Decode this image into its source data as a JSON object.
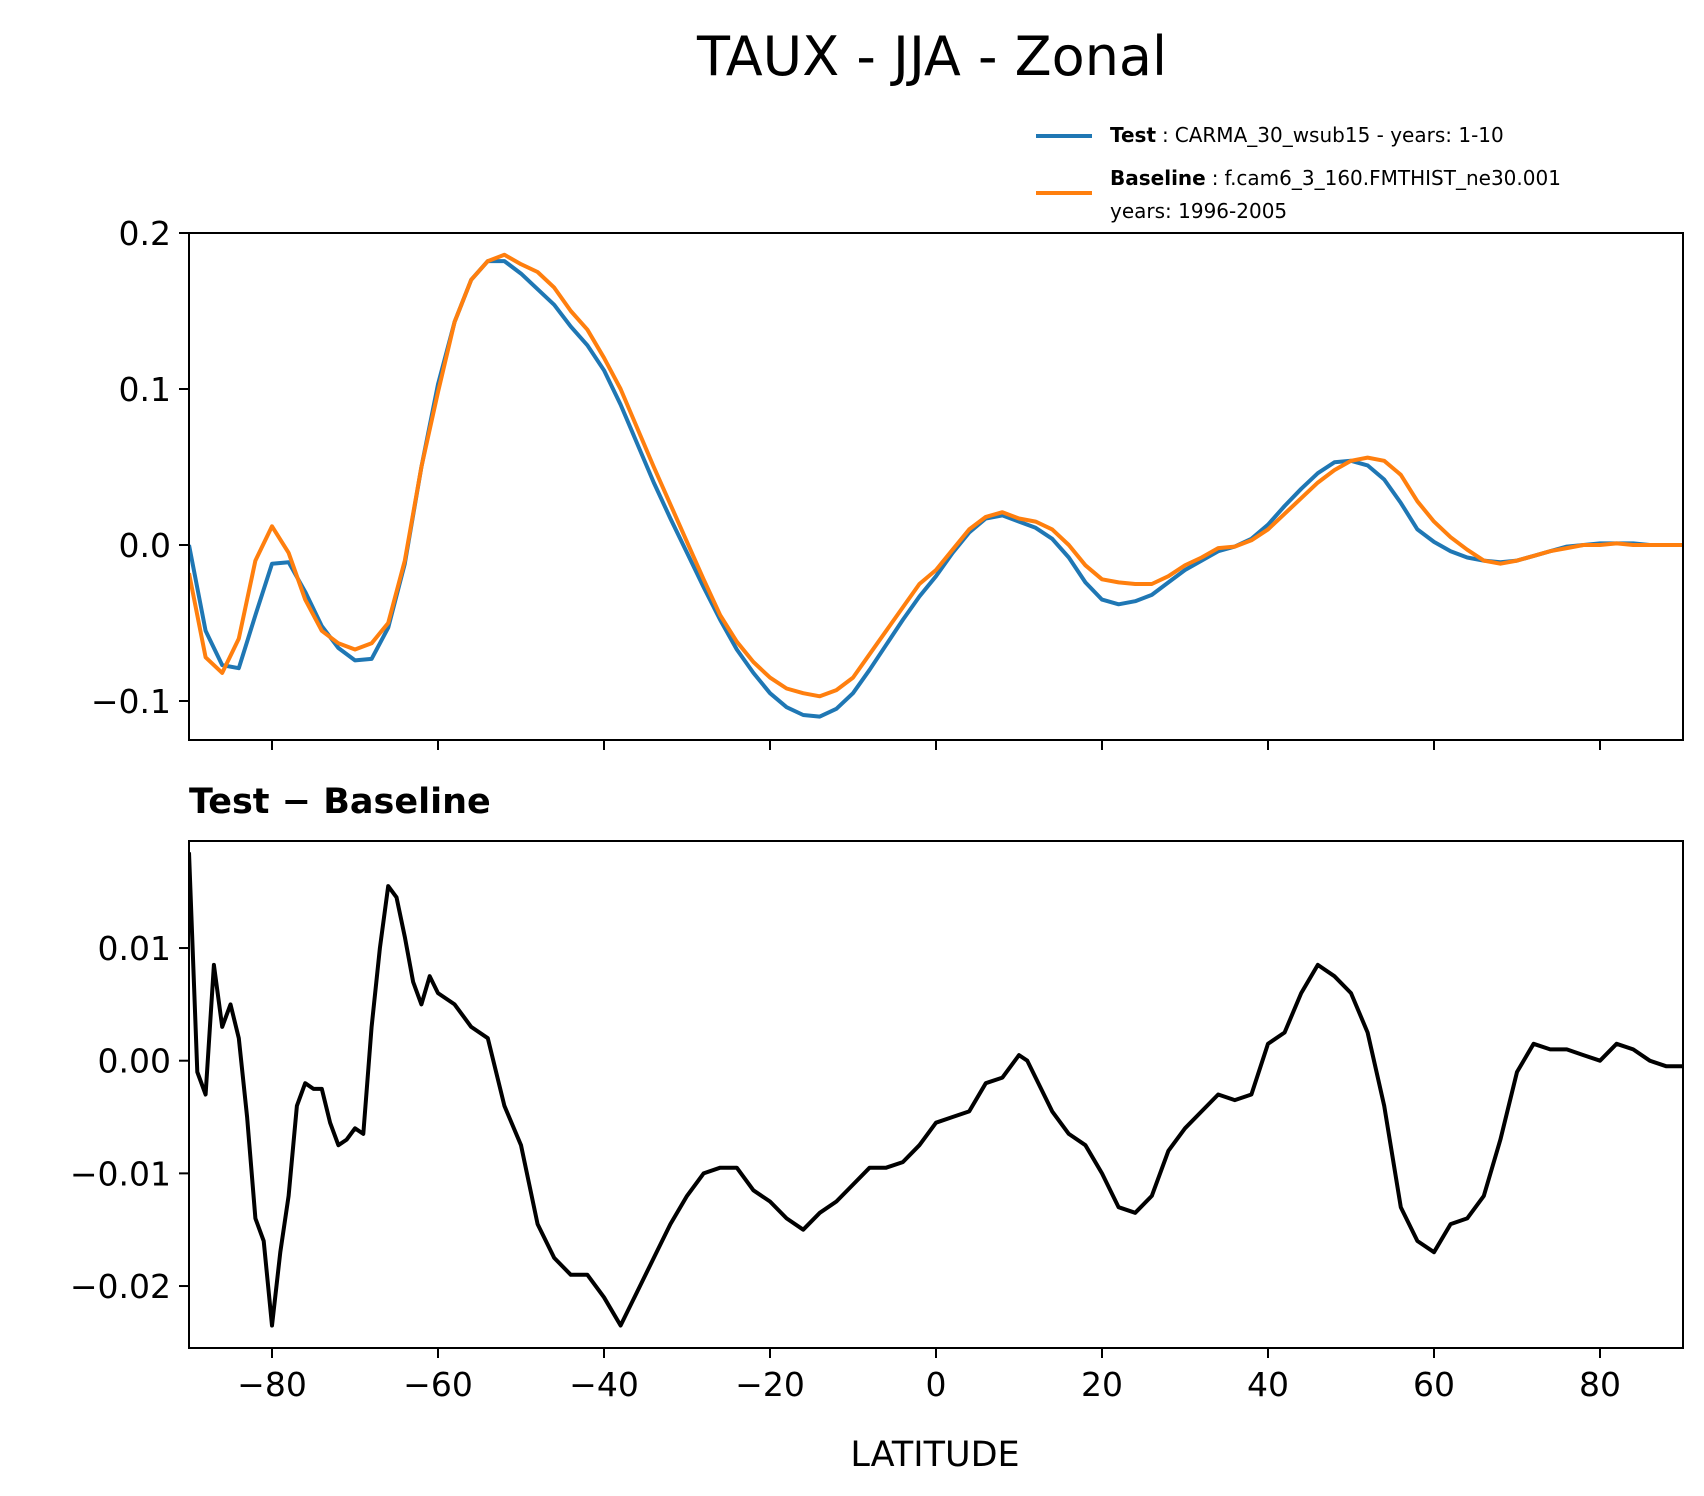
{
  "figure": {
    "title": "TAUX - JJA - Zonal"
  },
  "legend": {
    "placement": "top-right",
    "entries": [
      {
        "bold": "Test",
        "sep": ":",
        "text": "CARMA_30_wsub15 - years: 1-10",
        "text2": "",
        "color": "#1f77b4"
      },
      {
        "bold": "Baseline",
        "sep": ":",
        "text": "f.cam6_3_160.FMTHIST_ne30.001",
        "text2": "years: 1996-2005",
        "color": "#ff7f0e"
      }
    ]
  },
  "chart_data": [
    {
      "type": "line",
      "title": "",
      "xlabel": "",
      "ylabel": "",
      "xlim": [
        -90,
        90
      ],
      "ylim": [
        -0.125,
        0.2
      ],
      "yticks": [
        -0.1,
        0.0,
        0.1,
        0.2
      ],
      "ytick_labels": [
        "−0.1",
        "0.0",
        "0.1",
        "0.2"
      ],
      "xticks": [
        -80,
        -60,
        -40,
        -20,
        0,
        20,
        40,
        60,
        80
      ],
      "grid": false,
      "series": [
        {
          "name": "Test",
          "color": "#1f77b4",
          "x": [
            -90,
            -88,
            -86,
            -84,
            -82,
            -80,
            -78,
            -76,
            -74,
            -72,
            -70,
            -68,
            -66,
            -64,
            -62,
            -60,
            -58,
            -56,
            -54,
            -52,
            -50,
            -48,
            -46,
            -44,
            -42,
            -40,
            -38,
            -36,
            -34,
            -32,
            -30,
            -28,
            -26,
            -24,
            -22,
            -20,
            -18,
            -16,
            -14,
            -12,
            -10,
            -8,
            -6,
            -4,
            -2,
            0,
            2,
            4,
            6,
            8,
            10,
            12,
            14,
            16,
            18,
            20,
            22,
            24,
            26,
            28,
            30,
            32,
            34,
            36,
            38,
            40,
            42,
            44,
            46,
            48,
            50,
            52,
            54,
            56,
            58,
            60,
            62,
            64,
            66,
            68,
            70,
            72,
            74,
            76,
            78,
            80,
            82,
            84,
            86,
            88,
            90
          ],
          "y": [
            0.0,
            -0.055,
            -0.077,
            -0.079,
            -0.045,
            -0.012,
            -0.011,
            -0.03,
            -0.052,
            -0.066,
            -0.074,
            -0.073,
            -0.053,
            -0.012,
            0.05,
            0.103,
            0.143,
            0.17,
            0.182,
            0.182,
            0.174,
            0.164,
            0.154,
            0.14,
            0.128,
            0.112,
            0.09,
            0.065,
            0.04,
            0.017,
            -0.005,
            -0.027,
            -0.048,
            -0.067,
            -0.082,
            -0.095,
            -0.104,
            -0.109,
            -0.11,
            -0.105,
            -0.095,
            -0.08,
            -0.064,
            -0.048,
            -0.033,
            -0.02,
            -0.005,
            0.008,
            0.017,
            0.019,
            0.015,
            0.011,
            0.004,
            -0.008,
            -0.024,
            -0.035,
            -0.038,
            -0.036,
            -0.032,
            -0.024,
            -0.016,
            -0.01,
            -0.004,
            -0.001,
            0.004,
            0.013,
            0.025,
            0.036,
            0.046,
            0.053,
            0.054,
            0.051,
            0.042,
            0.027,
            0.01,
            0.002,
            -0.004,
            -0.008,
            -0.01,
            -0.011,
            -0.01,
            -0.007,
            -0.004,
            -0.001,
            0.0,
            0.001,
            0.001,
            0.001,
            0.0,
            0.0,
            0.0
          ]
        },
        {
          "name": "Baseline",
          "color": "#ff7f0e",
          "x": [
            -90,
            -88,
            -86,
            -84,
            -82,
            -80,
            -78,
            -76,
            -74,
            -72,
            -70,
            -68,
            -66,
            -64,
            -62,
            -60,
            -58,
            -56,
            -54,
            -52,
            -50,
            -48,
            -46,
            -44,
            -42,
            -40,
            -38,
            -36,
            -34,
            -32,
            -30,
            -28,
            -26,
            -24,
            -22,
            -20,
            -18,
            -16,
            -14,
            -12,
            -10,
            -8,
            -6,
            -4,
            -2,
            0,
            2,
            4,
            6,
            8,
            10,
            12,
            14,
            16,
            18,
            20,
            22,
            24,
            26,
            28,
            30,
            32,
            34,
            36,
            38,
            40,
            42,
            44,
            46,
            48,
            50,
            52,
            54,
            56,
            58,
            60,
            62,
            64,
            66,
            68,
            70,
            72,
            74,
            76,
            78,
            80,
            82,
            84,
            86,
            88,
            90
          ],
          "y": [
            -0.018,
            -0.072,
            -0.082,
            -0.06,
            -0.01,
            0.012,
            -0.005,
            -0.035,
            -0.055,
            -0.063,
            -0.067,
            -0.063,
            -0.05,
            -0.01,
            0.05,
            0.098,
            0.143,
            0.17,
            0.182,
            0.186,
            0.18,
            0.175,
            0.165,
            0.15,
            0.138,
            0.12,
            0.1,
            0.075,
            0.05,
            0.026,
            0.002,
            -0.022,
            -0.045,
            -0.062,
            -0.075,
            -0.085,
            -0.092,
            -0.095,
            -0.097,
            -0.093,
            -0.085,
            -0.07,
            -0.055,
            -0.04,
            -0.025,
            -0.016,
            -0.003,
            0.01,
            0.018,
            0.021,
            0.017,
            0.015,
            0.01,
            0.0,
            -0.013,
            -0.022,
            -0.024,
            -0.025,
            -0.025,
            -0.02,
            -0.013,
            -0.008,
            -0.002,
            -0.001,
            0.003,
            0.01,
            0.02,
            0.03,
            0.04,
            0.048,
            0.054,
            0.056,
            0.054,
            0.045,
            0.028,
            0.015,
            0.005,
            -0.003,
            -0.01,
            -0.012,
            -0.01,
            -0.007,
            -0.004,
            -0.002,
            0.0,
            0.0,
            0.001,
            0.0,
            0.0,
            0.0,
            0.0
          ]
        }
      ]
    },
    {
      "type": "line",
      "title": "Test − Baseline",
      "xlabel": "LATITUDE",
      "ylabel": "",
      "xlim": [
        -90,
        90
      ],
      "ylim": [
        -0.0255,
        0.0195
      ],
      "yticks": [
        -0.02,
        -0.01,
        0.0,
        0.01
      ],
      "ytick_labels": [
        "−0.02",
        "−0.01",
        "0.00",
        "0.01"
      ],
      "xticks": [
        -80,
        -60,
        -40,
        -20,
        0,
        20,
        40,
        60,
        80
      ],
      "xtick_labels": [
        "−80",
        "−60",
        "−40",
        "−20",
        "0",
        "20",
        "40",
        "60",
        "80"
      ],
      "grid": false,
      "series": [
        {
          "name": "",
          "color": "#000000",
          "x": [
            -90,
            -89,
            -88,
            -87,
            -86,
            -85,
            -84,
            -83,
            -82,
            -81,
            -80,
            -79,
            -78,
            -77,
            -76,
            -75,
            -74,
            -73,
            -72,
            -71,
            -70,
            -69,
            -68,
            -67,
            -66,
            -65,
            -64,
            -63,
            -62,
            -61,
            -60,
            -58,
            -56,
            -54,
            -52,
            -50,
            -48,
            -46,
            -44,
            -42,
            -40,
            -38,
            -36,
            -34,
            -32,
            -30,
            -28,
            -26,
            -24,
            -22,
            -20,
            -18,
            -16,
            -14,
            -12,
            -10,
            -8,
            -6,
            -4,
            -2,
            0,
            2,
            4,
            6,
            8,
            10,
            11,
            12,
            14,
            16,
            18,
            20,
            22,
            24,
            26,
            28,
            30,
            32,
            34,
            36,
            38,
            40,
            42,
            44,
            46,
            48,
            50,
            52,
            54,
            56,
            58,
            60,
            62,
            64,
            66,
            68,
            70,
            72,
            74,
            76,
            78,
            80,
            82,
            84,
            86,
            88,
            90
          ],
          "y": [
            0.0185,
            -0.001,
            -0.003,
            0.0085,
            0.003,
            0.005,
            0.002,
            -0.005,
            -0.014,
            -0.016,
            -0.0235,
            -0.017,
            -0.012,
            -0.004,
            -0.002,
            -0.0025,
            -0.0025,
            -0.0055,
            -0.0075,
            -0.007,
            -0.006,
            -0.0065,
            0.003,
            0.01,
            0.0155,
            0.0145,
            0.011,
            0.007,
            0.005,
            0.0075,
            0.006,
            0.005,
            0.003,
            0.002,
            -0.004,
            -0.0075,
            -0.0145,
            -0.0175,
            -0.019,
            -0.019,
            -0.021,
            -0.0235,
            -0.0205,
            -0.0175,
            -0.0145,
            -0.012,
            -0.01,
            -0.0095,
            -0.0095,
            -0.0115,
            -0.0125,
            -0.014,
            -0.015,
            -0.0135,
            -0.0125,
            -0.011,
            -0.0095,
            -0.0095,
            -0.009,
            -0.0075,
            -0.0055,
            -0.005,
            -0.0045,
            -0.002,
            -0.0015,
            0.0005,
            0.0,
            -0.0015,
            -0.0045,
            -0.0065,
            -0.0075,
            -0.01,
            -0.013,
            -0.0135,
            -0.012,
            -0.008,
            -0.006,
            -0.0045,
            -0.003,
            -0.0035,
            -0.003,
            0.0015,
            0.0025,
            0.006,
            0.0085,
            0.0075,
            0.006,
            0.0025,
            -0.004,
            -0.013,
            -0.016,
            -0.017,
            -0.0145,
            -0.014,
            -0.012,
            -0.007,
            -0.001,
            0.0015,
            0.001,
            0.001,
            0.0005,
            0.0,
            0.0015,
            0.001,
            0.0,
            -0.0005,
            -0.0005
          ]
        }
      ]
    }
  ]
}
